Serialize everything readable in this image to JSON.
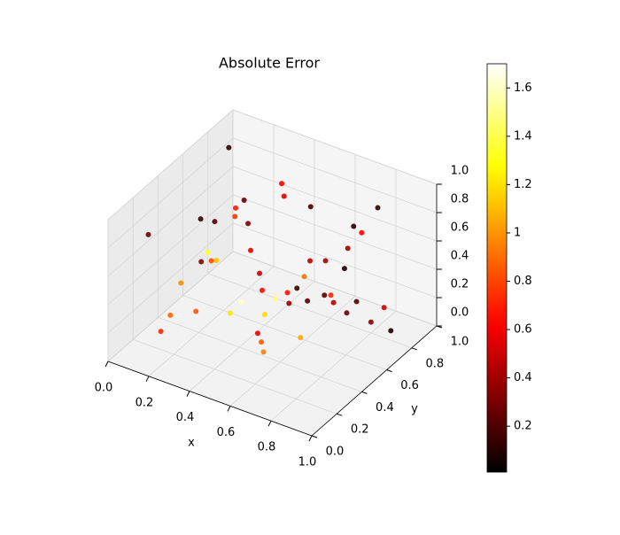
{
  "chart_data": {
    "type": "scatter3d",
    "title": "Absolute Error",
    "xlabel": "x",
    "ylabel": "y",
    "colormap": "hot",
    "clim": [
      0.01,
      1.7
    ],
    "cticks": [
      0.2,
      0.4,
      0.6,
      0.8,
      1.0,
      1.2,
      1.4,
      1.6
    ],
    "xlim": [
      0,
      1
    ],
    "ylim": [
      0,
      1
    ],
    "zlim": [
      0,
      1
    ],
    "xticks": [
      {
        "value": 0,
        "label": "0.0"
      },
      0.2,
      0.4,
      0.6,
      0.8,
      {
        "value": 1,
        "label": "1.0"
      }
    ],
    "yticks": [
      {
        "value": 0,
        "label": "0.0"
      },
      0.2,
      0.4,
      0.6,
      0.8,
      {
        "value": 1,
        "label": "1.0"
      }
    ],
    "zticks": [
      {
        "value": 0,
        "label": "0.0"
      },
      0.2,
      0.4,
      0.6,
      0.8,
      {
        "value": 1,
        "label": "1.0"
      }
    ],
    "x": [
      0.12,
      0.85,
      0.43,
      0.67,
      0.05,
      0.91,
      0.33,
      0.58,
      0.76,
      0.21,
      0.49,
      0.95,
      0.14,
      0.62,
      0.38,
      0.81,
      0.27,
      0.53,
      0.71,
      0.09,
      0.44,
      0.88,
      0.31,
      0.66,
      0.18,
      0.97,
      0.55,
      0.24,
      0.73,
      0.4,
      0.02,
      0.84,
      0.47,
      0.6,
      0.35,
      0.78,
      0.11,
      0.92,
      0.29,
      0.69,
      0.51,
      0.16,
      0.83,
      0.42,
      0.64,
      0.07,
      0.57,
      0.94,
      0.26,
      0.74
    ],
    "y": [
      0.55,
      0.21,
      0.87,
      0.12,
      0.66,
      0.78,
      0.33,
      0.49,
      0.92,
      0.08,
      0.61,
      0.44,
      0.27,
      0.73,
      0.18,
      0.59,
      0.95,
      0.38,
      0.04,
      0.82,
      0.26,
      0.67,
      0.51,
      0.89,
      0.41,
      0.15,
      0.72,
      0.63,
      0.35,
      0.97,
      0.29,
      0.84,
      0.06,
      0.47,
      0.77,
      0.24,
      0.91,
      0.53,
      0.11,
      0.68,
      0.31,
      0.86,
      0.43,
      0.57,
      0.19,
      0.74,
      0.99,
      0.36,
      0.64,
      0.02
    ],
    "z": [
      0.34,
      0.71,
      0.15,
      0.88,
      0.52,
      0.09,
      0.63,
      0.41,
      0.77,
      0.26,
      0.95,
      0.58,
      0.19,
      0.47,
      0.83,
      0.31,
      0.66,
      0.05,
      0.54,
      0.92,
      0.37,
      0.22,
      0.79,
      0.61,
      0.13,
      0.86,
      0.44,
      0.72,
      0.28,
      0.55,
      0.68,
      0.17,
      0.91,
      0.36,
      0.03,
      0.74,
      0.49,
      0.98,
      0.62,
      0.25,
      0.81,
      0.39,
      0.57,
      0.11,
      0.69,
      0.45,
      0.33,
      0.87,
      0.06,
      0.51
    ],
    "values": [
      0.35,
      0.21,
      0.92,
      0.48,
      0.15,
      0.08,
      1.12,
      0.67,
      0.12,
      0.73,
      0.55,
      0.19,
      0.88,
      0.41,
      1.35,
      0.27,
      0.62,
      0.95,
      0.58,
      0.11,
      1.21,
      0.33,
      0.76,
      0.09,
      0.84,
      0.24,
      0.47,
      0.69,
      1.05,
      0.18,
      0.29,
      0.52,
      0.81,
      0.38,
      1.48,
      0.14,
      0.26,
      0.63,
      0.99,
      0.44,
      0.57,
      0.31,
      0.72,
      1.18,
      0.65,
      0.22,
      0.39,
      0.07,
      1.62,
      0.86
    ]
  }
}
